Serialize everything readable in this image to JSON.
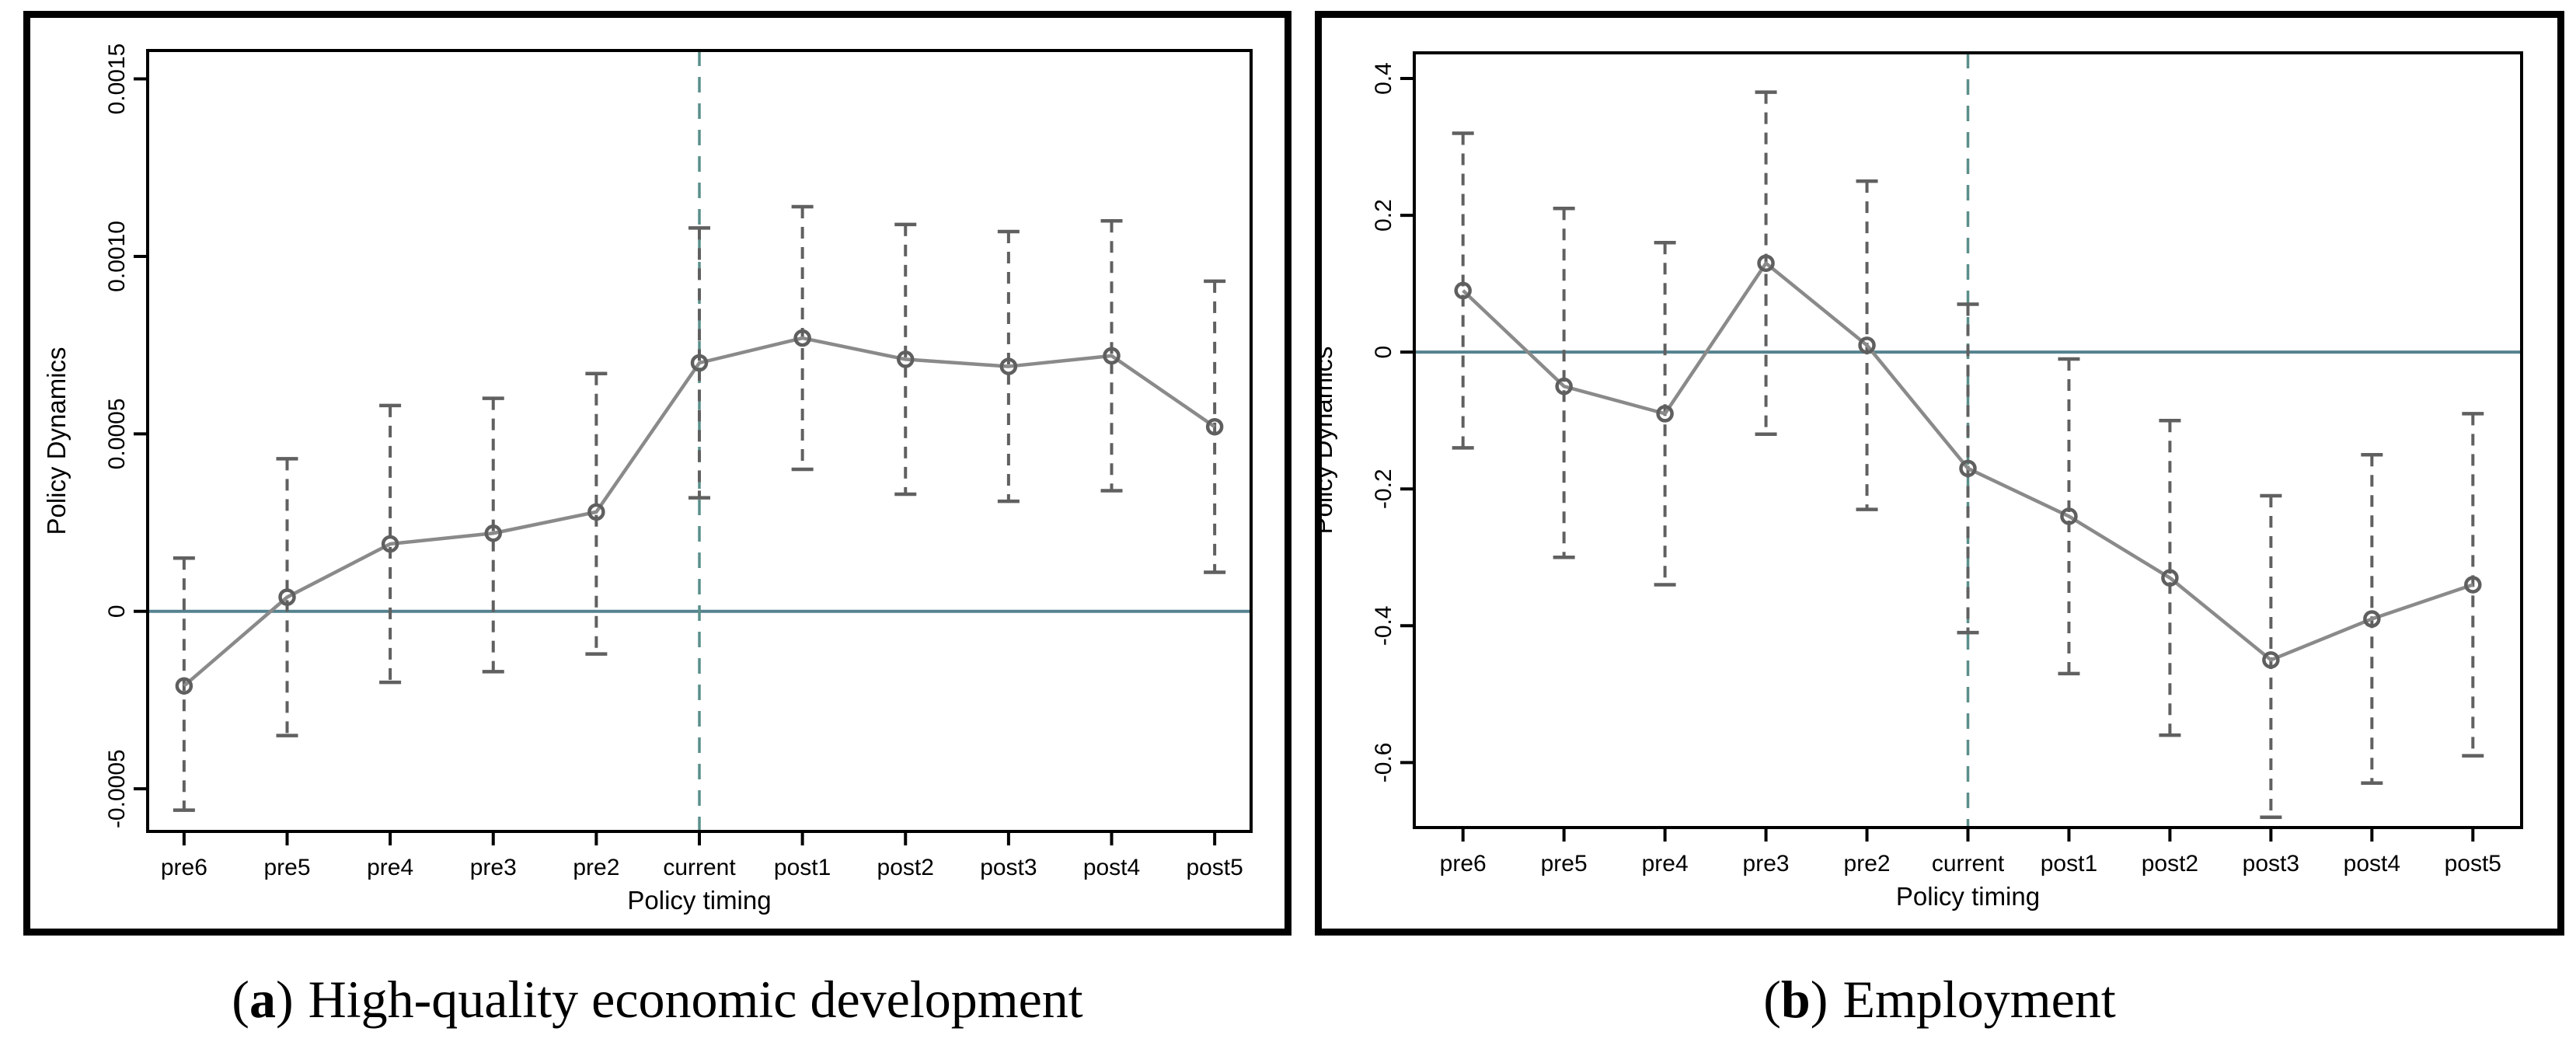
{
  "figure": {
    "background": "#ffffff",
    "panels": [
      {
        "id": "a",
        "caption": {
          "open": "(",
          "letter": "a",
          "close": ")",
          "text": "High-quality economic development"
        }
      },
      {
        "id": "b",
        "caption": {
          "open": "(",
          "letter": "b",
          "close": ")",
          "text": "Employment"
        }
      }
    ]
  },
  "colors": {
    "axis": "#000000",
    "series_line": "#8A8A8A",
    "marker_stroke": "#5F5F5F",
    "error_bar": "#606060",
    "zero_line": "#55828F",
    "event_line": "#5A8F8A"
  },
  "chart_data": [
    {
      "type": "line",
      "title": "(a) High-quality economic development",
      "categories": [
        "pre6",
        "pre5",
        "pre4",
        "pre3",
        "pre2",
        "current",
        "post1",
        "post2",
        "post3",
        "post4",
        "post5"
      ],
      "xlabel": "Policy timing",
      "ylabel": "Policy Dynamics",
      "ylim": [
        -0.00062,
        0.00158
      ],
      "yticks": [
        -0.0005,
        0,
        0.0005,
        0.001,
        0.0015
      ],
      "ytick_labels": [
        "-0.0005",
        "0",
        "0.0005",
        "0.0010",
        "0.0015"
      ],
      "grid": false,
      "legend": "none",
      "marker": "open-circle",
      "series": [
        {
          "name": "Policy Dynamics",
          "values": [
            -0.00021,
            4e-05,
            0.00019,
            0.00022,
            0.00028,
            0.0007,
            0.00077,
            0.00071,
            0.00069,
            0.00072,
            0.00052
          ],
          "ci_upper": [
            0.00015,
            0.00043,
            0.00058,
            0.0006,
            0.00067,
            0.00108,
            0.00114,
            0.00109,
            0.00107,
            0.0011,
            0.00093
          ],
          "ci_lower": [
            -0.00056,
            -0.00035,
            -0.0002,
            -0.00017,
            -0.00012,
            0.00032,
            0.0004,
            0.00033,
            0.00031,
            0.00034,
            0.00011
          ]
        }
      ],
      "reference_lines": {
        "horizontal_y": 0,
        "vertical_at_category": "current"
      }
    },
    {
      "type": "line",
      "title": "(b) Employment",
      "categories": [
        "pre6",
        "pre5",
        "pre4",
        "pre3",
        "pre2",
        "current",
        "post1",
        "post2",
        "post3",
        "post4",
        "post5"
      ],
      "xlabel": "Policy timing",
      "ylabel": "Policy Dynamics",
      "ylim": [
        -0.695,
        0.4375
      ],
      "yticks": [
        -0.6,
        -0.4,
        -0.2,
        0,
        0.2,
        0.4
      ],
      "ytick_labels": [
        "-0.6",
        "-0.4",
        "-0.2",
        "0",
        "0.2",
        "0.4"
      ],
      "grid": false,
      "legend": "none",
      "marker": "open-circle",
      "series": [
        {
          "name": "Policy Dynamics",
          "values": [
            0.09,
            -0.05,
            -0.09,
            0.13,
            0.01,
            -0.17,
            -0.24,
            -0.33,
            -0.45,
            -0.39,
            -0.34
          ],
          "ci_upper": [
            0.32,
            0.21,
            0.16,
            0.38,
            0.25,
            0.07,
            -0.01,
            -0.1,
            -0.21,
            -0.15,
            -0.09
          ],
          "ci_lower": [
            -0.14,
            -0.3,
            -0.34,
            -0.12,
            -0.23,
            -0.41,
            -0.47,
            -0.56,
            -0.68,
            -0.63,
            -0.59
          ]
        }
      ],
      "reference_lines": {
        "horizontal_y": 0,
        "vertical_at_category": "current"
      }
    }
  ]
}
